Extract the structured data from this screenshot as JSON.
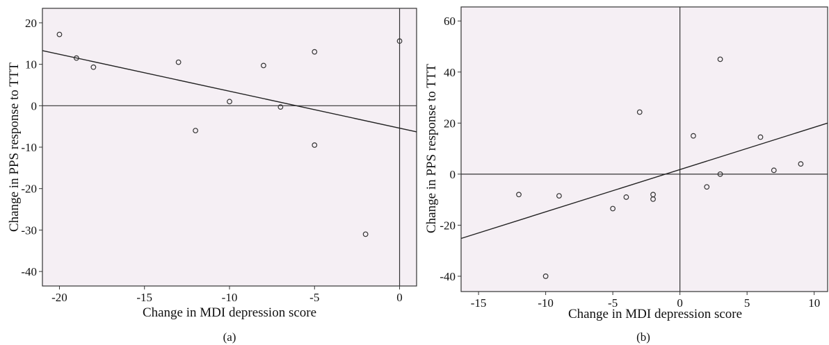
{
  "chart_data": [
    {
      "type": "scatter",
      "caption": "(a)",
      "xlabel": "Change in MDI depression score",
      "ylabel": "Change in PPS response to TTT",
      "xlim": [
        -21,
        1
      ],
      "ylim": [
        -43.5,
        23.5
      ],
      "xticks": [
        -20,
        -15,
        -10,
        -5,
        0
      ],
      "yticks": [
        20,
        10,
        0,
        -10,
        -20,
        -30,
        -40
      ],
      "points": [
        {
          "x": -20,
          "y": 17.2
        },
        {
          "x": -19,
          "y": 11.5
        },
        {
          "x": -18,
          "y": 9.3
        },
        {
          "x": -13,
          "y": 10.5
        },
        {
          "x": -12,
          "y": -6
        },
        {
          "x": -10,
          "y": 1
        },
        {
          "x": -8,
          "y": 9.7
        },
        {
          "x": -7,
          "y": -0.3
        },
        {
          "x": -5,
          "y": 13
        },
        {
          "x": -5,
          "y": -9.5
        },
        {
          "x": -2,
          "y": -31
        },
        {
          "x": 0,
          "y": 15.6
        }
      ],
      "reference_lines": {
        "x": 0,
        "y": 0
      },
      "fit_line": [
        {
          "x": -21,
          "y": 13.3
        },
        {
          "x": 1,
          "y": -6.3
        }
      ]
    },
    {
      "type": "scatter",
      "caption": "(b)",
      "xlabel": "Change in MDI depression score",
      "ylabel": "Change in PPS response to TTT",
      "xlim": [
        -16.3,
        11
      ],
      "ylim": [
        -46,
        65.5
      ],
      "xticks": [
        -15,
        -10,
        -5,
        0,
        5,
        10
      ],
      "yticks": [
        60,
        40,
        20,
        0,
        -20,
        -40
      ],
      "points": [
        {
          "x": -12,
          "y": -8
        },
        {
          "x": -10,
          "y": -40
        },
        {
          "x": -9,
          "y": -8.5
        },
        {
          "x": -5,
          "y": -13.5
        },
        {
          "x": -4,
          "y": -9
        },
        {
          "x": -3,
          "y": 24.3
        },
        {
          "x": -2,
          "y": -8
        },
        {
          "x": -2,
          "y": -9.8
        },
        {
          "x": 1,
          "y": 15
        },
        {
          "x": 2,
          "y": -5
        },
        {
          "x": 3,
          "y": 45
        },
        {
          "x": 3,
          "y": 0
        },
        {
          "x": 6,
          "y": 14.5
        },
        {
          "x": 7,
          "y": 1.5
        },
        {
          "x": 9,
          "y": 4
        }
      ],
      "reference_lines": {
        "x": 0,
        "y": 0
      },
      "fit_line": [
        {
          "x": -16.3,
          "y": -25.2
        },
        {
          "x": 11,
          "y": 20
        }
      ]
    }
  ]
}
